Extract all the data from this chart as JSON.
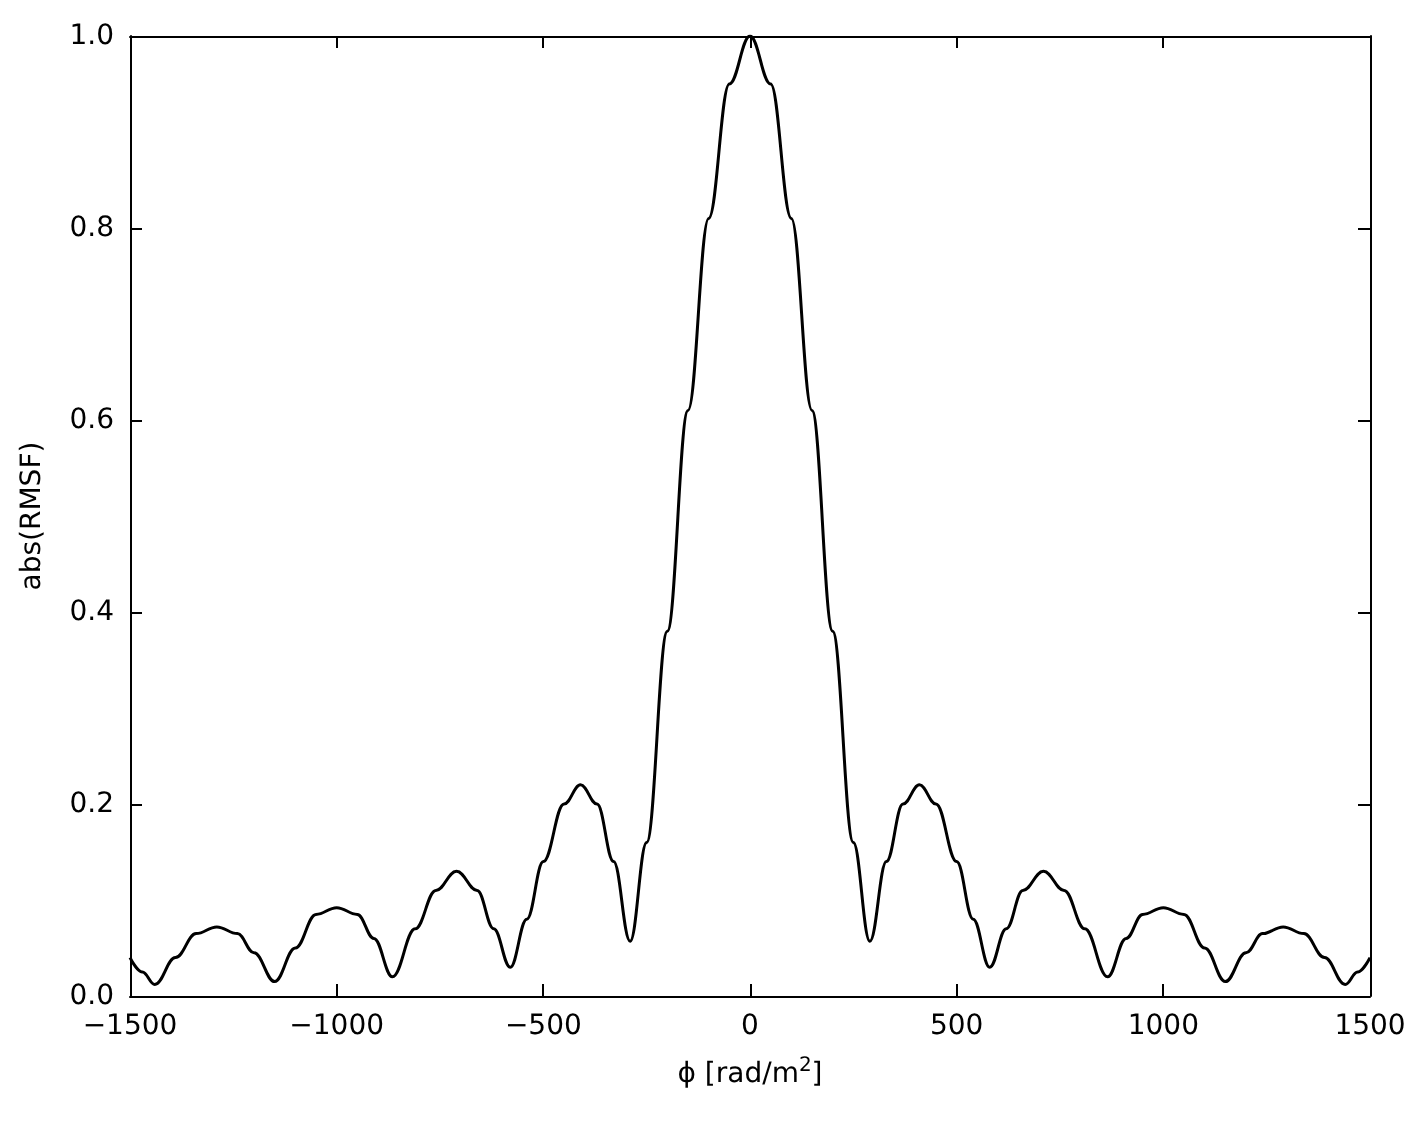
{
  "chart_data": {
    "type": "line",
    "xlabel": "ϕ [rad/m$^{2}$]",
    "ylabel": "abs(RMSF)",
    "xlim": [
      -1500,
      1500
    ],
    "xticks": [
      -1500,
      -1000,
      -500,
      0,
      500,
      1000,
      1500
    ],
    "ylim": [
      0,
      1
    ],
    "yticks": [
      {
        "value": 0,
        "label": "0.0"
      },
      {
        "value": 0.2,
        "label": "0.2"
      },
      {
        "value": 0.4,
        "label": "0.4"
      },
      {
        "value": 0.6,
        "label": "0.6"
      },
      {
        "value": 0.8,
        "label": "0.8"
      },
      {
        "value": 1,
        "label": "1.0"
      }
    ],
    "grid": false,
    "marker": "none",
    "line_style": "solid",
    "series": [
      {
        "color": "#000000",
        "x": [
          -1500,
          -1470,
          -1440,
          -1390,
          -1340,
          -1290,
          -1240,
          -1200,
          -1150,
          -1100,
          -1050,
          -1000,
          -950,
          -910,
          -865,
          -810,
          -760,
          -710,
          -660,
          -620,
          -580,
          -540,
          -500,
          -450,
          -410,
          -370,
          -330,
          -290,
          -250,
          -200,
          -150,
          -100,
          -50,
          0,
          50,
          100,
          150,
          200,
          250,
          290,
          330,
          370,
          410,
          450,
          500,
          540,
          580,
          620,
          660,
          710,
          760,
          810,
          865,
          910,
          950,
          1000,
          1050,
          1100,
          1150,
          1200,
          1240,
          1290,
          1340,
          1390,
          1440,
          1470,
          1500
        ],
        "values": [
          0.04,
          0.025,
          0.012,
          0.04,
          0.065,
          0.072,
          0.065,
          0.045,
          0.015,
          0.05,
          0.085,
          0.092,
          0.085,
          0.06,
          0.02,
          0.07,
          0.11,
          0.13,
          0.11,
          0.07,
          0.03,
          0.08,
          0.14,
          0.2,
          0.22,
          0.2,
          0.14,
          0.057,
          0.16,
          0.38,
          0.61,
          0.81,
          0.95,
          1.0,
          0.95,
          0.81,
          0.61,
          0.38,
          0.16,
          0.057,
          0.14,
          0.2,
          0.22,
          0.2,
          0.14,
          0.08,
          0.03,
          0.07,
          0.11,
          0.13,
          0.11,
          0.07,
          0.02,
          0.06,
          0.085,
          0.092,
          0.085,
          0.05,
          0.015,
          0.045,
          0.065,
          0.072,
          0.065,
          0.04,
          0.012,
          0.025,
          0.04
        ]
      }
    ]
  }
}
